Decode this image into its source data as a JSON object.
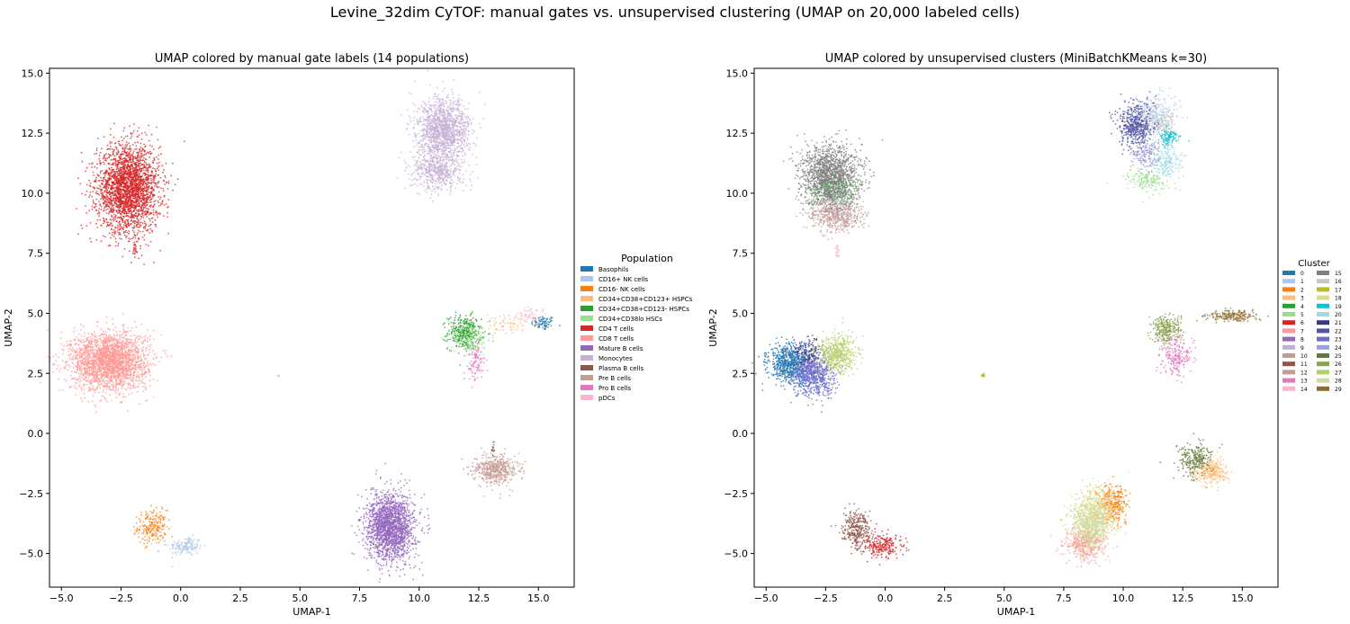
{
  "figure": {
    "suptitle": "Levine_32dim CyTOF: manual gates vs. unsupervised clustering (UMAP on 20,000 labeled cells)"
  },
  "chart_data": [
    {
      "type": "scatter",
      "title": "UMAP colored by manual gate labels (14 populations)",
      "xlabel": "UMAP-1",
      "ylabel": "UMAP-2",
      "xlim": [
        -5.5,
        16.5
      ],
      "ylim": [
        -6.4,
        15.2
      ],
      "xticks": [
        -5.0,
        -2.5,
        0.0,
        2.5,
        5.0,
        7.5,
        10.0,
        12.5,
        15.0
      ],
      "xtick_labels": [
        "−5.0",
        "−2.5",
        "0.0",
        "2.5",
        "5.0",
        "7.5",
        "10.0",
        "12.5",
        "15.0"
      ],
      "yticks": [
        -5.0,
        -2.5,
        0.0,
        2.5,
        5.0,
        7.5,
        10.0,
        12.5,
        15.0
      ],
      "ytick_labels": [
        "−5.0",
        "−2.5",
        "0.0",
        "2.5",
        "5.0",
        "7.5",
        "10.0",
        "12.5",
        "15.0"
      ],
      "grid": false,
      "legend": {
        "title": "Population",
        "placement": "outside-right",
        "columns": 1
      },
      "categories": [
        {
          "name": "Basophils",
          "color": "#1f77b4",
          "clusters": [
            [
              15.2,
              4.6,
              0.25,
              0.15,
              80
            ]
          ]
        },
        {
          "name": "CD16+ NK cells",
          "color": "#aec7e8",
          "clusters": [
            [
              0.2,
              -4.7,
              0.35,
              0.2,
              150
            ]
          ]
        },
        {
          "name": "CD16- NK cells",
          "color": "#ff7f0e",
          "clusters": [
            [
              -1.2,
              -3.9,
              0.3,
              0.35,
              220
            ]
          ]
        },
        {
          "name": "CD34+CD38+CD123+ HSPCs",
          "color": "#ffbb78",
          "clusters": [
            [
              13.8,
              4.5,
              0.6,
              0.2,
              60
            ]
          ]
        },
        {
          "name": "CD34+CD38+CD123- HSPCs",
          "color": "#2ca02c",
          "clusters": [
            [
              11.9,
              4.2,
              0.35,
              0.35,
              350
            ]
          ]
        },
        {
          "name": "CD34+CD38lo HSCs",
          "color": "#98df8a",
          "clusters": [
            [
              12.2,
              3.9,
              0.4,
              0.3,
              120
            ]
          ]
        },
        {
          "name": "CD4 T cells",
          "color": "#d62728",
          "clusters": [
            [
              -2.2,
              10.2,
              0.65,
              0.9,
              2600
            ],
            [
              -1.9,
              7.6,
              0.05,
              0.15,
              20
            ]
          ]
        },
        {
          "name": "CD8 T cells",
          "color": "#ff9896",
          "clusters": [
            [
              -3.0,
              3.0,
              0.8,
              0.6,
              2400
            ]
          ]
        },
        {
          "name": "Mature B cells",
          "color": "#9467bd",
          "clusters": [
            [
              8.8,
              -3.9,
              0.5,
              0.7,
              1900
            ]
          ]
        },
        {
          "name": "Monocytes",
          "color": "#c5b0d5",
          "clusters": [
            [
              11.0,
              12.6,
              0.55,
              0.65,
              1400
            ],
            [
              10.8,
              10.9,
              0.55,
              0.4,
              500
            ]
          ]
        },
        {
          "name": "Plasma B cells",
          "color": "#8c564b",
          "clusters": [
            [
              13.1,
              -0.7,
              0.05,
              0.15,
              15
            ]
          ]
        },
        {
          "name": "Pre B cells",
          "color": "#c49c94",
          "clusters": [
            [
              13.2,
              -1.5,
              0.45,
              0.3,
              500
            ]
          ]
        },
        {
          "name": "Pro B cells",
          "color": "#e377c2",
          "clusters": [
            [
              12.4,
              3.0,
              0.2,
              0.4,
              100
            ]
          ]
        },
        {
          "name": "pDCs",
          "color": "#f7b6d2",
          "clusters": [
            [
              14.6,
              4.9,
              0.25,
              0.12,
              60
            ]
          ]
        }
      ],
      "stray_points": [
        [
          4.1,
          2.4,
          "#c7c7c7"
        ],
        [
          7.5,
          -3.6,
          "#9467bd"
        ]
      ]
    },
    {
      "type": "scatter",
      "title": "UMAP colored by unsupervised clusters (MiniBatchKMeans k=30)",
      "xlabel": "UMAP-1",
      "ylabel": "UMAP-2",
      "xlim": [
        -5.5,
        16.5
      ],
      "ylim": [
        -6.4,
        15.2
      ],
      "xticks": [
        -5.0,
        -2.5,
        0.0,
        2.5,
        5.0,
        7.5,
        10.0,
        12.5,
        15.0
      ],
      "xtick_labels": [
        "−5.0",
        "−2.5",
        "0.0",
        "2.5",
        "5.0",
        "7.5",
        "10.0",
        "12.5",
        "15.0"
      ],
      "yticks": [
        -5.0,
        -2.5,
        0.0,
        2.5,
        5.0,
        7.5,
        10.0,
        12.5,
        15.0
      ],
      "ytick_labels": [
        "−5.0",
        "−2.5",
        "0.0",
        "2.5",
        "5.0",
        "7.5",
        "10.0",
        "12.5",
        "15.0"
      ],
      "grid": false,
      "legend": {
        "title": "Cluster",
        "placement": "outside-right",
        "columns": 2
      },
      "categories": [
        {
          "name": "0",
          "color": "#1f77b4",
          "clusters": [
            [
              -4.0,
              2.9,
              0.45,
              0.4,
              700
            ]
          ]
        },
        {
          "name": "1",
          "color": "#aec7e8",
          "clusters": [
            [
              11.3,
              13.3,
              0.4,
              0.4,
              250
            ]
          ]
        },
        {
          "name": "2",
          "color": "#ff7f0e",
          "clusters": [
            [
              9.6,
              -2.9,
              0.3,
              0.4,
              300
            ]
          ]
        },
        {
          "name": "3",
          "color": "#ffbb78",
          "clusters": [
            [
              13.7,
              -1.6,
              0.35,
              0.25,
              300
            ]
          ]
        },
        {
          "name": "4",
          "color": "#2ca02c",
          "clusters": [
            [
              -2.2,
              10.1,
              0.5,
              0.4,
              300
            ]
          ]
        },
        {
          "name": "5",
          "color": "#98df8a",
          "clusters": [
            [
              11.0,
              10.5,
              0.45,
              0.25,
              150
            ]
          ]
        },
        {
          "name": "6",
          "color": "#d62728",
          "clusters": [
            [
              -0.1,
              -4.7,
              0.45,
              0.25,
              250
            ]
          ]
        },
        {
          "name": "7",
          "color": "#ff9896",
          "clusters": [
            [
              8.4,
              -4.6,
              0.4,
              0.35,
              400
            ]
          ]
        },
        {
          "name": "8",
          "color": "#9467bd",
          "clusters": [
            [
              -3.0,
              3.0,
              0.4,
              0.4,
              120
            ]
          ]
        },
        {
          "name": "9",
          "color": "#c5b0d5",
          "clusters": [
            [
              -2.0,
              9.5,
              0.5,
              0.4,
              200
            ]
          ]
        },
        {
          "name": "10",
          "color": "#c49c94",
          "clusters": [
            [
              -2.2,
              9.2,
              0.55,
              0.4,
              350
            ]
          ]
        },
        {
          "name": "11",
          "color": "#8c564b",
          "clusters": [
            [
              -1.2,
              -4.0,
              0.3,
              0.35,
              300
            ]
          ]
        },
        {
          "name": "12",
          "color": "#c49c94",
          "clusters": [
            [
              -1.8,
              9.0,
              0.5,
              0.3,
              150
            ]
          ]
        },
        {
          "name": "13",
          "color": "#e377c2",
          "clusters": [
            [
              12.2,
              3.2,
              0.3,
              0.4,
              220
            ]
          ]
        },
        {
          "name": "14",
          "color": "#f7b6d2",
          "clusters": [
            [
              -2.0,
              7.6,
              0.05,
              0.15,
              20
            ]
          ]
        },
        {
          "name": "15",
          "color": "#7f7f7f",
          "clusters": [
            [
              -2.3,
              10.8,
              0.65,
              0.6,
              1300
            ]
          ]
        },
        {
          "name": "16",
          "color": "#c7c7c7",
          "clusters": [
            [
              11.5,
              12.9,
              0.35,
              0.3,
              150
            ]
          ]
        },
        {
          "name": "17",
          "color": "#bcbd22",
          "clusters": [
            [
              4.1,
              2.4,
              0.04,
              0.04,
              15
            ]
          ]
        },
        {
          "name": "18",
          "color": "#dbdb8d",
          "clusters": [
            [
              8.8,
              -3.2,
              0.45,
              0.5,
              500
            ]
          ]
        },
        {
          "name": "19",
          "color": "#17becf",
          "clusters": [
            [
              11.9,
              12.3,
              0.2,
              0.2,
              120
            ]
          ]
        },
        {
          "name": "20",
          "color": "#9edae5",
          "clusters": [
            [
              11.8,
              11.3,
              0.35,
              0.35,
              200
            ]
          ]
        },
        {
          "name": "21",
          "color": "#393b79",
          "clusters": [
            [
              -3.3,
              3.4,
              0.35,
              0.3,
              150
            ]
          ]
        },
        {
          "name": "22",
          "color": "#5254a3",
          "clusters": [
            [
              10.5,
              12.8,
              0.35,
              0.5,
              500
            ]
          ]
        },
        {
          "name": "23",
          "color": "#6b6ecf",
          "clusters": [
            [
              -3.0,
              2.3,
              0.45,
              0.4,
              600
            ]
          ]
        },
        {
          "name": "24",
          "color": "#9c9ede",
          "clusters": [
            [
              10.9,
              11.6,
              0.3,
              0.3,
              150
            ]
          ]
        },
        {
          "name": "25",
          "color": "#637939",
          "clusters": [
            [
              13.0,
              -1.1,
              0.35,
              0.35,
              250
            ]
          ]
        },
        {
          "name": "26",
          "color": "#8ca252",
          "clusters": [
            [
              11.8,
              4.3,
              0.3,
              0.3,
              300
            ]
          ]
        },
        {
          "name": "27",
          "color": "#b5cf6b",
          "clusters": [
            [
              -2.0,
              3.3,
              0.4,
              0.4,
              500
            ]
          ]
        },
        {
          "name": "28",
          "color": "#cedb9c",
          "clusters": [
            [
              8.6,
              -3.9,
              0.4,
              0.5,
              600
            ]
          ]
        },
        {
          "name": "29",
          "color": "#8c6d31",
          "clusters": [
            [
              14.6,
              4.9,
              0.5,
              0.12,
              200
            ]
          ]
        }
      ],
      "stray_points": [
        [
          7.4,
          -3.6,
          "#dbdb8d"
        ]
      ]
    }
  ]
}
